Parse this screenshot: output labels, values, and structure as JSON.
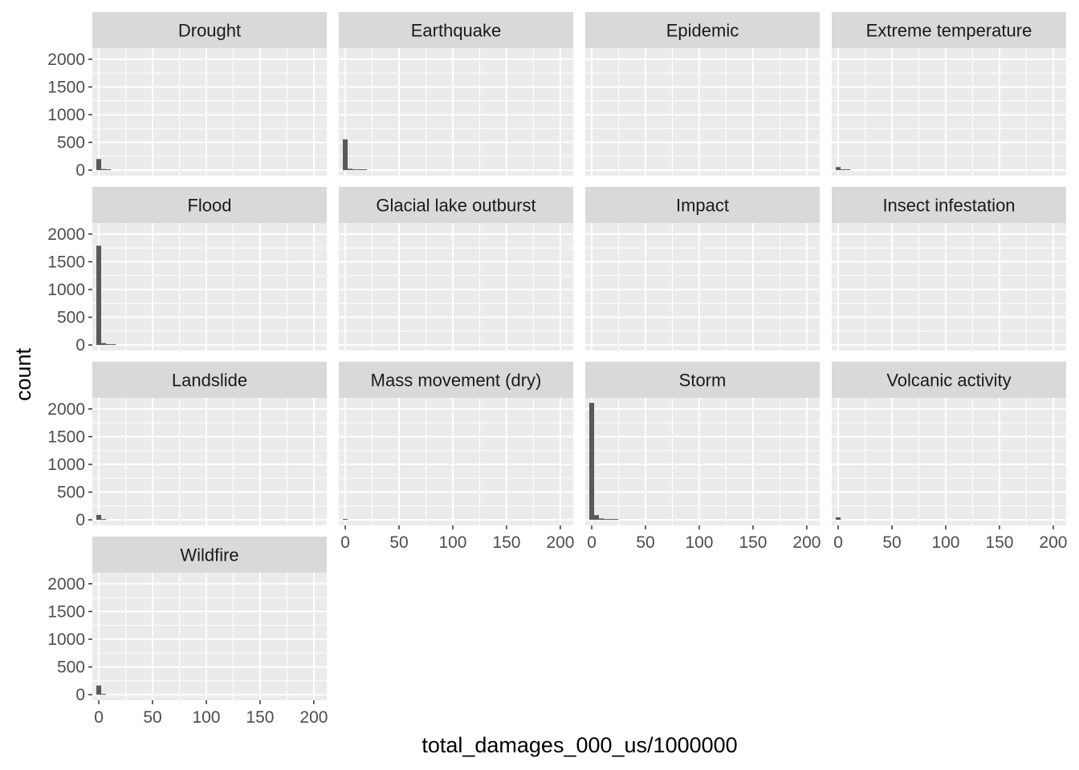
{
  "chart_data": {
    "type": "bar",
    "layout": "facet_wrap",
    "xlabel": "total_damages_000_us/1000000",
    "ylabel": "count",
    "xlim": [
      -6,
      212
    ],
    "ylim": [
      -100,
      2200
    ],
    "x_ticks": [
      0,
      50,
      100,
      150,
      200
    ],
    "y_ticks": [
      0,
      500,
      1000,
      1500,
      2000
    ],
    "bin_width": 4.5,
    "grid": true,
    "colors": {
      "panel_background": "#ebebeb",
      "grid_line": "#ffffff",
      "strip_background": "#d9d9d9",
      "bar_fill": "#595959",
      "tick_label": "#4d4d4d"
    },
    "panels": [
      {
        "name": "Drought",
        "bins": [
          {
            "x": 0,
            "count": 200
          },
          {
            "x": 4.5,
            "count": 20
          },
          {
            "x": 9,
            "count": 5
          }
        ]
      },
      {
        "name": "Earthquake",
        "bins": [
          {
            "x": 0,
            "count": 555
          },
          {
            "x": 4.5,
            "count": 25
          },
          {
            "x": 9,
            "count": 8
          },
          {
            "x": 13.5,
            "count": 4
          },
          {
            "x": 18,
            "count": 2
          }
        ]
      },
      {
        "name": "Epidemic",
        "bins": []
      },
      {
        "name": "Extreme temperature",
        "bins": [
          {
            "x": 0,
            "count": 55
          },
          {
            "x": 4.5,
            "count": 15
          },
          {
            "x": 9,
            "count": 3
          }
        ]
      },
      {
        "name": "Flood",
        "bins": [
          {
            "x": 0,
            "count": 1790
          },
          {
            "x": 4.5,
            "count": 35
          },
          {
            "x": 9,
            "count": 12
          },
          {
            "x": 13.5,
            "count": 3
          }
        ]
      },
      {
        "name": "Glacial lake outburst",
        "bins": []
      },
      {
        "name": "Impact",
        "bins": []
      },
      {
        "name": "Insect infestation",
        "bins": []
      },
      {
        "name": "Landslide",
        "bins": [
          {
            "x": 0,
            "count": 90
          },
          {
            "x": 4.5,
            "count": 2
          }
        ]
      },
      {
        "name": "Mass movement (dry)",
        "bins": [
          {
            "x": 0,
            "count": 10
          }
        ]
      },
      {
        "name": "Storm",
        "bins": [
          {
            "x": 0,
            "count": 2110
          },
          {
            "x": 4.5,
            "count": 85
          },
          {
            "x": 9,
            "count": 25
          },
          {
            "x": 13.5,
            "count": 10
          },
          {
            "x": 18,
            "count": 8
          },
          {
            "x": 22.5,
            "count": 3
          }
        ]
      },
      {
        "name": "Volcanic activity",
        "bins": [
          {
            "x": 0,
            "count": 45
          }
        ]
      },
      {
        "name": "Wildfire",
        "bins": [
          {
            "x": 0,
            "count": 165
          },
          {
            "x": 4.5,
            "count": 5
          }
        ]
      }
    ]
  }
}
